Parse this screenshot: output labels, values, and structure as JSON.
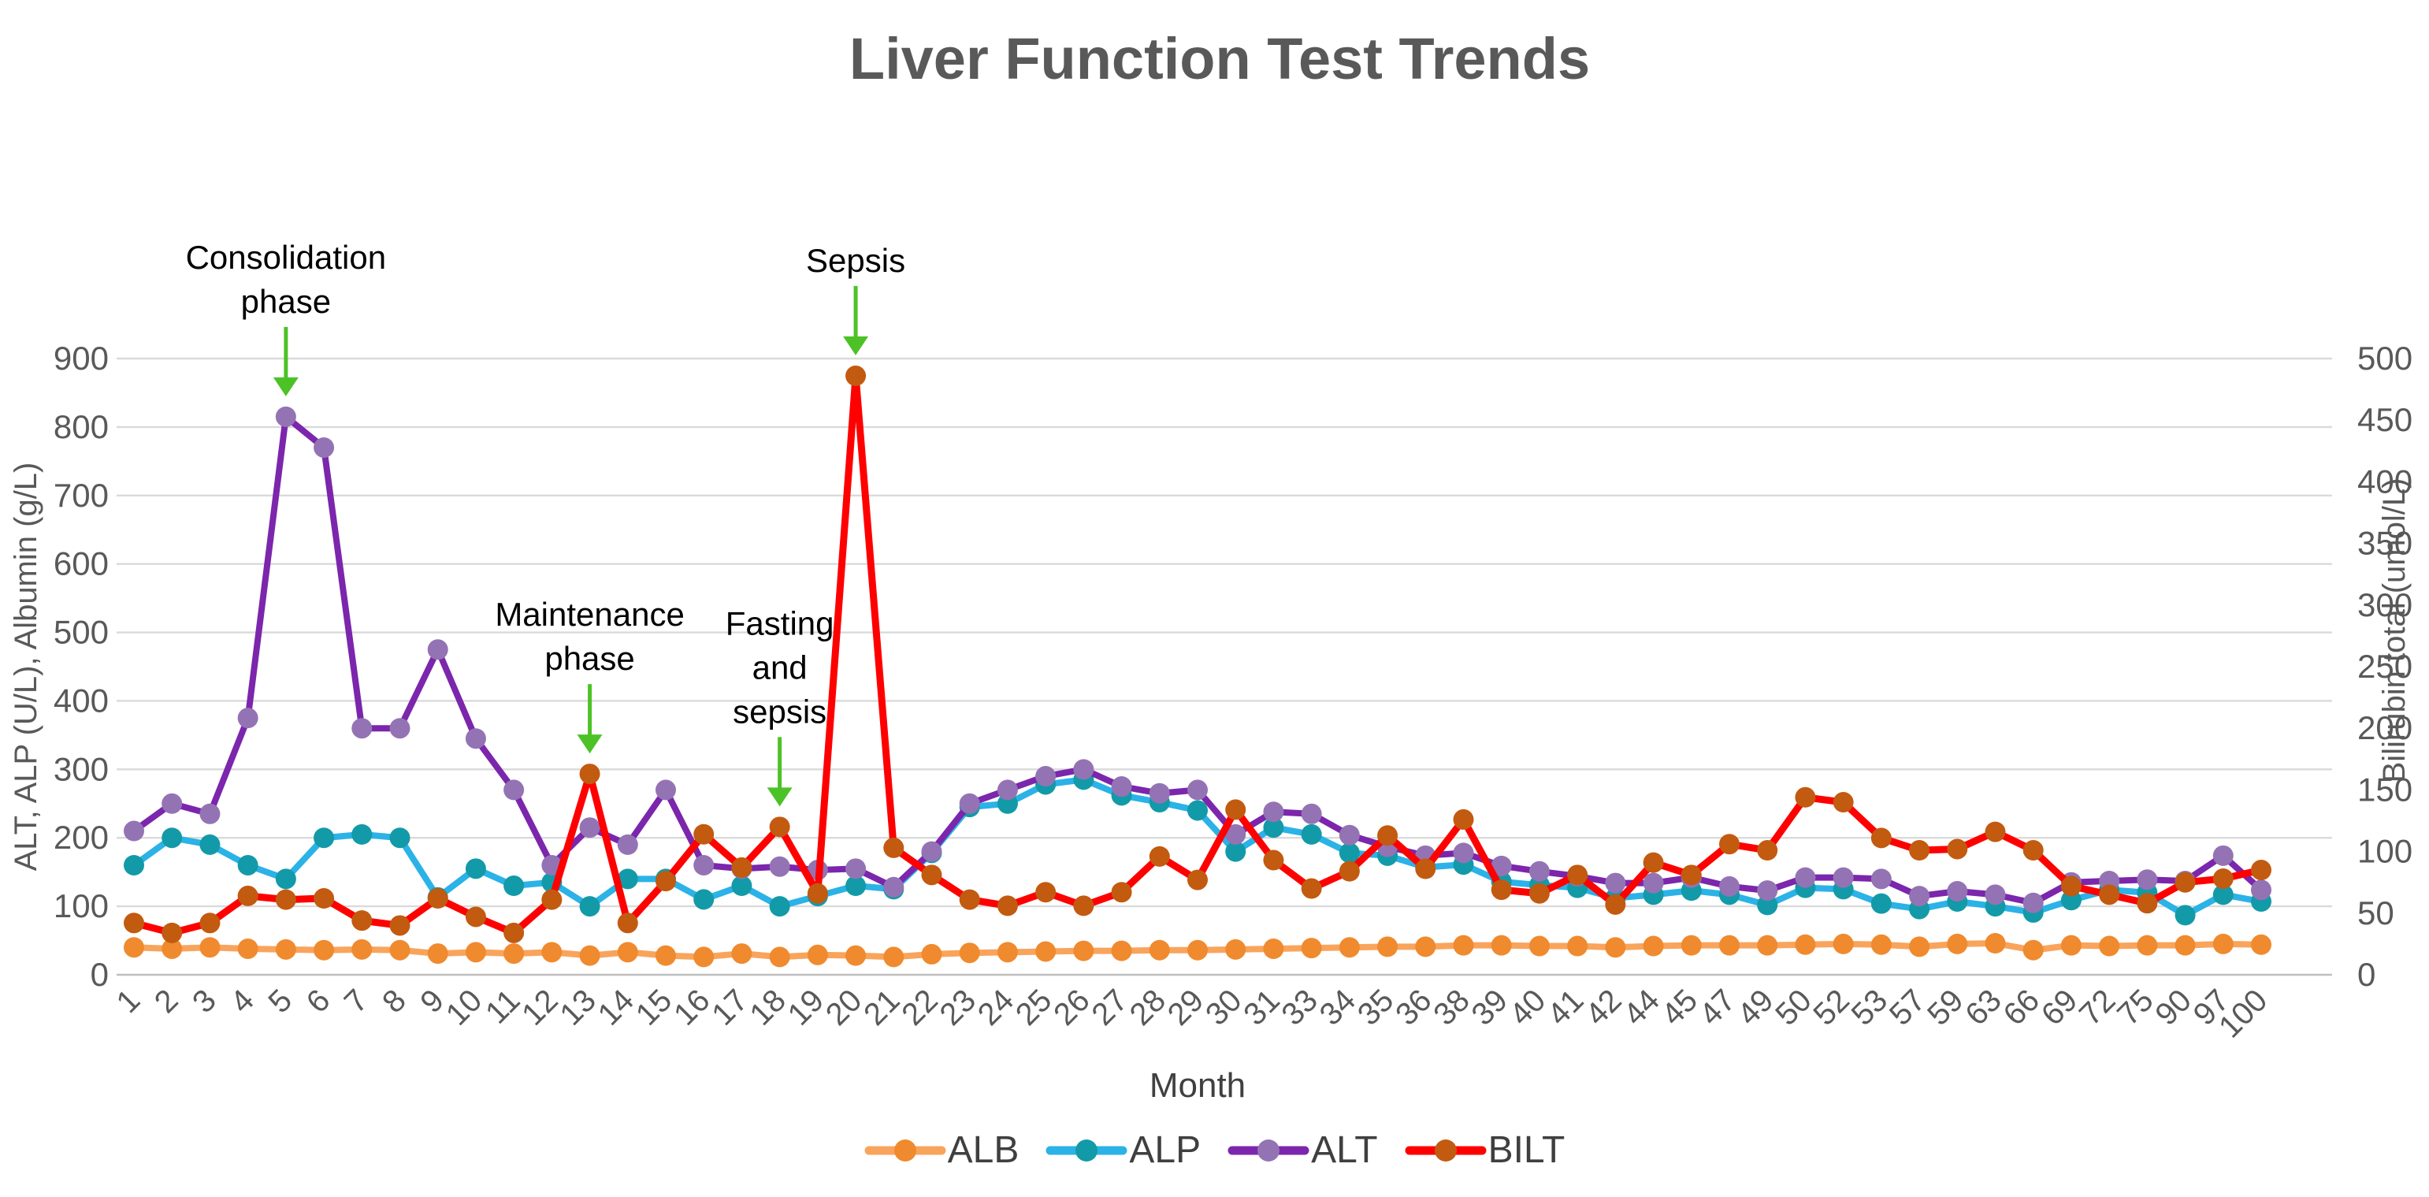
{
  "title": "Liver Function Test Trends",
  "axes": {
    "left": {
      "title": "ALT, ALP (U/L), Albumin (g/L)"
    },
    "right": {
      "title": "Bilirubin total (umol/L)"
    },
    "x": {
      "title": "Month"
    }
  },
  "legend": {
    "position": "bottom",
    "items": [
      "ALB",
      "ALP",
      "ALT",
      "BILT"
    ]
  },
  "colors": {
    "title_gray": "#595959",
    "tick_gray": "#595959",
    "gridline": "#DADADA",
    "zero_line": "#BFBFBF",
    "annotation_green": "#4CC226",
    "annotation_text": "#000000"
  },
  "chart_data": {
    "type": "line",
    "title": "Liver Function Test Trends",
    "xlabel": "Month",
    "grid": true,
    "legend_position": "bottom",
    "x": [
      "1",
      "2",
      "3",
      "4",
      "5",
      "6",
      "7",
      "8",
      "9",
      "10",
      "11",
      "12",
      "13",
      "14",
      "15",
      "16",
      "17",
      "18",
      "19",
      "20",
      "21",
      "22",
      "23",
      "24",
      "25",
      "26",
      "27",
      "28",
      "29",
      "30",
      "31",
      "33",
      "34",
      "35",
      "36",
      "38",
      "39",
      "40",
      "41",
      "42",
      "44",
      "45",
      "47",
      "49",
      "50",
      "52",
      "53",
      "57",
      "59",
      "63",
      "66",
      "69",
      "72",
      "75",
      "90",
      "97",
      "100"
    ],
    "left_axis": {
      "label": "ALT, ALP (U/L), Albumin (g/L)",
      "min": 0,
      "max": 900,
      "ticks": [
        0,
        100,
        200,
        300,
        400,
        500,
        600,
        700,
        800,
        900
      ]
    },
    "right_axis": {
      "label": "Bilirubin total (umol/L)",
      "min": 0,
      "max": 500,
      "ticks": [
        0,
        50,
        100,
        150,
        200,
        250,
        300,
        350,
        400,
        450,
        500
      ]
    },
    "series": [
      {
        "name": "ALB",
        "axis": "left",
        "unit": "g/L",
        "line_color": "#F9A45C",
        "marker_color": "#F08A2E",
        "values": [
          40,
          38,
          40,
          38,
          37,
          36,
          37,
          36,
          31,
          33,
          31,
          33,
          28,
          33,
          28,
          26,
          31,
          26,
          29,
          28,
          26,
          30,
          32,
          33,
          34,
          35,
          35,
          36,
          36,
          37,
          38,
          39,
          40,
          41,
          41,
          43,
          43,
          42,
          42,
          40,
          42,
          43,
          43,
          43,
          44,
          45,
          44,
          41,
          45,
          46,
          36,
          43,
          42,
          43,
          43,
          45,
          44
        ]
      },
      {
        "name": "ALP",
        "axis": "left",
        "unit": "U/L",
        "line_color": "#2BB2E7",
        "marker_color": "#139AA8",
        "values": [
          160,
          200,
          190,
          160,
          140,
          200,
          205,
          200,
          113,
          155,
          130,
          135,
          100,
          140,
          140,
          110,
          130,
          100,
          115,
          130,
          125,
          178,
          245,
          250,
          278,
          285,
          262,
          252,
          240,
          180,
          215,
          205,
          178,
          174,
          157,
          161,
          136,
          131,
          127,
          112,
          117,
          123,
          117,
          102,
          127,
          125,
          104,
          96,
          107,
          100,
          91,
          109,
          124,
          120,
          87,
          117,
          107
        ]
      },
      {
        "name": "ALT",
        "axis": "left",
        "unit": "U/L",
        "line_color": "#7B26AC",
        "marker_color": "#9473B4",
        "values": [
          210,
          250,
          235,
          375,
          815,
          770,
          360,
          360,
          475,
          345,
          270,
          160,
          215,
          190,
          270,
          160,
          155,
          158,
          153,
          155,
          128,
          180,
          250,
          270,
          290,
          300,
          275,
          265,
          270,
          205,
          238,
          235,
          204,
          187,
          174,
          178,
          159,
          151,
          144,
          134,
          134,
          142,
          129,
          123,
          142,
          142,
          140,
          115,
          122,
          117,
          105,
          135,
          137,
          139,
          137,
          174,
          124
        ]
      },
      {
        "name": "BILT",
        "axis": "right",
        "unit": "umol/L",
        "line_color": "#FF0000",
        "marker_color": "#C25A10",
        "values": [
          42,
          34,
          42,
          64,
          61,
          62,
          44,
          40,
          62,
          47,
          34,
          61,
          163,
          42,
          76,
          114,
          87,
          120,
          66,
          486,
          103,
          81,
          61,
          56,
          67,
          56,
          67,
          96,
          77,
          134,
          93,
          70,
          84,
          113,
          86,
          126,
          69,
          66,
          81,
          57,
          91,
          81,
          106,
          101,
          144,
          140,
          111,
          101,
          102,
          116,
          101,
          72,
          65,
          58,
          75,
          78,
          85
        ]
      }
    ],
    "annotations": [
      {
        "text_lines": [
          "Consolidation",
          "phase"
        ],
        "month": "5",
        "series": "ALT"
      },
      {
        "text_lines": [
          "Maintenance",
          "phase"
        ],
        "month": "13",
        "series": "BILT"
      },
      {
        "text_lines": [
          "Fasting",
          "and",
          "sepsis"
        ],
        "month": "18",
        "series": "BILT"
      },
      {
        "text_lines": [
          "Sepsis"
        ],
        "month": "20",
        "series": "BILT"
      }
    ]
  }
}
